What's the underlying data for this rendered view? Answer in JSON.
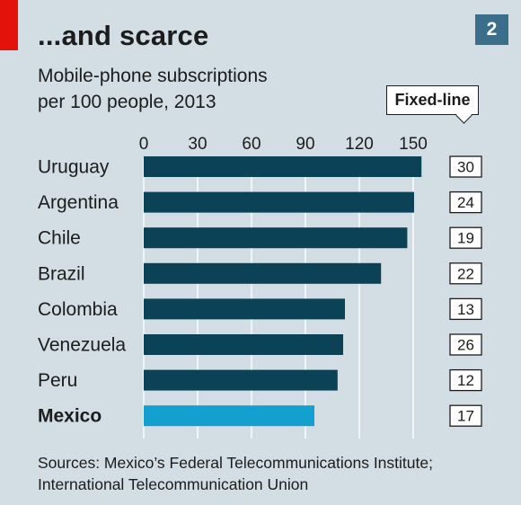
{
  "header": {
    "title": "...and scarce",
    "subtitle_line1": "Mobile-phone subscriptions",
    "subtitle_line2": "per 100 people, 2013",
    "chart_number": "2"
  },
  "fixed_line_label": "Fixed-line",
  "sources_line1": "Sources: Mexico’s Federal Telecommunications Institute;",
  "sources_line2": "International Telecommunication Union",
  "colors": {
    "bar": "#0b4256",
    "highlight_bar": "#14a0cf",
    "background": "#d2dee4",
    "accent_red": "#e3120b"
  },
  "chart_data": {
    "type": "bar",
    "orientation": "horizontal",
    "title": "...and scarce",
    "subtitle": "Mobile-phone subscriptions per 100 people, 2013",
    "categories": [
      "Uruguay",
      "Argentina",
      "Chile",
      "Brazil",
      "Colombia",
      "Venezuela",
      "Peru",
      "Mexico"
    ],
    "values": [
      154.6,
      150.5,
      146.7,
      132.1,
      112,
      111,
      107.9,
      95
    ],
    "highlight": "Mexico",
    "xlim": [
      0,
      150
    ],
    "xticks": [
      0,
      30,
      60,
      90,
      120,
      150
    ],
    "grid": true,
    "fixed_line": {
      "label": "Fixed-line",
      "values": [
        30,
        24,
        19,
        22,
        13,
        26,
        12,
        17
      ]
    }
  }
}
